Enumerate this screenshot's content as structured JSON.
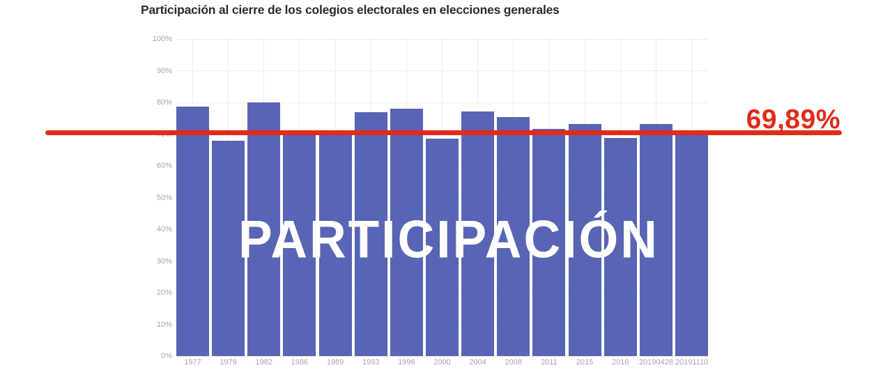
{
  "title": "Participación al cierre de los colegios electorales en elecciones generales",
  "overlay": {
    "text": "PARTICIPACIÓN"
  },
  "annotation": {
    "label": "69,89%",
    "value": 69.89
  },
  "colors": {
    "bar": "#5864b4",
    "annotation": "#e02c19",
    "grid": "#ececec",
    "axis_text": "#a5a5a5",
    "title_text": "#2b2b2b",
    "overlay_text": "#ffffff"
  },
  "chart_data": {
    "type": "bar",
    "title": "Participación al cierre de los colegios electorales en elecciones generales",
    "categories": [
      "1977",
      "1979",
      "1982",
      "1986",
      "1989",
      "1993",
      "1996",
      "2000",
      "2004",
      "2008",
      "2011",
      "2015",
      "2016",
      "20190428",
      "20191110"
    ],
    "values": [
      78.7,
      68.0,
      80.0,
      70.5,
      69.7,
      76.9,
      78.0,
      68.5,
      77.2,
      75.3,
      71.7,
      73.2,
      68.9,
      73.3,
      69.89
    ],
    "xlabel": "",
    "ylabel": "",
    "ylim": [
      0,
      100
    ],
    "yticks": [
      "0%",
      "10%",
      "20%",
      "30%",
      "40%",
      "50%",
      "60%",
      "70%",
      "80%",
      "90%",
      "100%"
    ],
    "grid": true,
    "legend": "none",
    "annotation_line": {
      "value": 69.89,
      "label": "69,89%",
      "color": "#e02c19"
    },
    "overlay_text": "PARTICIPACIÓN"
  }
}
